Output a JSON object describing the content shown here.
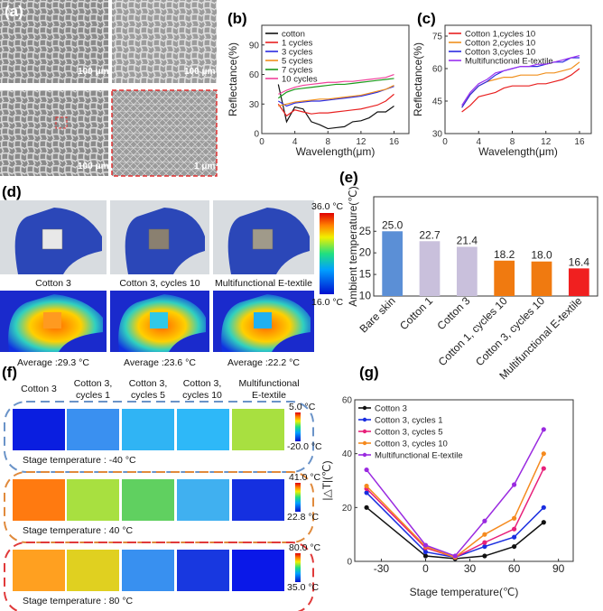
{
  "panels": {
    "a": {
      "label": "(a)",
      "scale_bars": [
        "100 μm",
        "100 μm",
        "100 μm",
        "1 μm"
      ]
    },
    "b": {
      "label": "(b)"
    },
    "c": {
      "label": "(c)"
    },
    "d": {
      "label": "(d)",
      "samples": [
        "Cotton 3",
        "Cotton 3, cycles 10",
        "Multifunctional E-textile"
      ],
      "averages": [
        "Average :29.3 °C",
        "Average :23.6 °C",
        "Average :22.2 °C"
      ],
      "colorbar": {
        "max": "36.0 °C",
        "min": "16.0 °C"
      }
    },
    "e": {
      "label": "(e)"
    },
    "f": {
      "label": "(f)",
      "columns": [
        [
          "Cotton 3",
          ""
        ],
        [
          "Cotton 3,",
          "cycles 1"
        ],
        [
          "Cotton 3,",
          "cycles 5"
        ],
        [
          "Cotton 3,",
          "cycles 10"
        ],
        [
          "Multifunctional",
          "E-textile"
        ]
      ],
      "rows": [
        {
          "stage": "Stage temperature : -40 °C",
          "max": "5.0 °C",
          "min": "-20.0 °C",
          "border": "#6a93c8"
        },
        {
          "stage": "Stage temperature : 40 °C",
          "max": "41.0 °C",
          "min": "22.8 °C",
          "border": "#e08a3c"
        },
        {
          "stage": "Stage temperature : 80 °C",
          "max": "80.0 °C",
          "min": "35.0 °C",
          "border": "#e03a3a"
        }
      ]
    },
    "g": {
      "label": "(g)"
    }
  },
  "chart_data": [
    {
      "id": "b",
      "type": "line",
      "xlabel": "Wavelength(μm)",
      "ylabel": "Reflectance(%)",
      "xlim": [
        0,
        17.8
      ],
      "ylim": [
        0,
        110
      ],
      "xticks": [
        0,
        4,
        8,
        12,
        16
      ],
      "yticks": [
        0,
        30,
        60,
        90
      ],
      "x": [
        2,
        3,
        4,
        5,
        6,
        7,
        8,
        9,
        10,
        11,
        12,
        13,
        14,
        15,
        16
      ],
      "legend": "top-left",
      "series": [
        {
          "name": "cotton",
          "color": "#111111",
          "values": [
            50,
            12,
            27,
            25,
            12,
            9,
            5,
            6,
            7,
            12,
            13,
            16,
            22,
            22,
            28
          ]
        },
        {
          "name": "1 cycles",
          "color": "#e82020",
          "values": [
            30,
            18,
            24,
            22,
            20,
            21,
            21,
            22,
            23,
            24,
            25,
            27,
            29,
            33,
            40
          ]
        },
        {
          "name": "3 cycles",
          "color": "#2a2ae0",
          "values": [
            33,
            28,
            31,
            32,
            33,
            33,
            34,
            35,
            36,
            37,
            38,
            40,
            42,
            45,
            48
          ]
        },
        {
          "name": "5 cycles",
          "color": "#f0901e",
          "values": [
            28,
            30,
            32,
            33,
            34,
            35,
            35,
            36,
            37,
            38,
            39,
            41,
            43,
            45,
            49
          ]
        },
        {
          "name": "7 cycles",
          "color": "#1a9a1a",
          "values": [
            36,
            42,
            45,
            46,
            47,
            48,
            49,
            50,
            50,
            51,
            52,
            53,
            54,
            55,
            56
          ]
        },
        {
          "name": "10 cycles",
          "color": "#f0409a",
          "values": [
            40,
            44,
            47,
            49,
            50,
            51,
            52,
            52,
            53,
            53,
            54,
            55,
            56,
            57,
            60
          ]
        }
      ]
    },
    {
      "id": "c",
      "type": "line",
      "xlabel": "Wavelength(μm)",
      "ylabel": "Reflectance(%)",
      "xlim": [
        0,
        17.4
      ],
      "ylim": [
        30,
        80
      ],
      "xticks": [
        0,
        4,
        8,
        12,
        16
      ],
      "yticks": [
        30,
        45,
        60,
        75
      ],
      "x": [
        2,
        3,
        4,
        5,
        6,
        7,
        8,
        9,
        10,
        11,
        12,
        13,
        14,
        15,
        16
      ],
      "legend": "top-left",
      "series": [
        {
          "name": "Cotton 1,cycles 10",
          "color": "#e82020",
          "values": [
            40,
            43,
            47,
            48,
            49,
            51,
            52,
            52,
            52,
            53,
            53,
            54,
            55,
            57,
            60
          ]
        },
        {
          "name": "Cotton 2,cycles 10",
          "color": "#f0901e",
          "values": [
            42,
            48,
            52,
            54,
            55,
            56,
            56,
            57,
            57,
            57,
            58,
            58,
            59,
            60,
            63
          ]
        },
        {
          "name": "Cotton 3,cycles 10",
          "color": "#2a2ae0",
          "values": [
            42,
            48,
            52,
            54,
            57,
            59,
            60,
            61,
            61,
            61,
            62,
            63,
            63,
            65,
            65
          ]
        },
        {
          "name": "Multifunctional E-textile",
          "color": "#9a30f0",
          "values": [
            43,
            49,
            53,
            55,
            58,
            59,
            60,
            61,
            61,
            62,
            62,
            63,
            64,
            65,
            66
          ]
        }
      ]
    },
    {
      "id": "e",
      "type": "bar",
      "ylabel": "Ambient temperature(℃)",
      "ylim": [
        10,
        33
      ],
      "yticks": [
        10,
        15,
        20,
        25
      ],
      "categories": [
        "Bare skin",
        "Cotton 1",
        "Cotton 3",
        "Cotton 1, cycles 10",
        "Cotton 3, cycles 10",
        "Multifunctional E-textile"
      ],
      "values": [
        25.0,
        22.7,
        21.4,
        18.2,
        18.0,
        16.4
      ],
      "labels": [
        "25.0",
        "22.7",
        "21.4",
        "18.2",
        "18.0",
        "16.4"
      ],
      "colors": [
        "#5b8fd6",
        "#c9c0dc",
        "#c9c0dc",
        "#f07a10",
        "#f07a10",
        "#f02020"
      ]
    },
    {
      "id": "g",
      "type": "line",
      "xlabel": "Stage temperature(℃)",
      "ylabel": "|△T|(℃)",
      "xlim": [
        -48,
        100
      ],
      "ylim": [
        0,
        60
      ],
      "xticks": [
        -30,
        0,
        30,
        60,
        90
      ],
      "yticks": [
        0,
        20,
        40,
        60
      ],
      "x": [
        -40,
        0,
        20,
        40,
        60,
        80
      ],
      "legend": "top-left",
      "series": [
        {
          "name": "Cotton 3",
          "color": "#111111",
          "values": [
            20,
            2,
            1,
            2,
            5.5,
            14.5
          ]
        },
        {
          "name": "Cotton 3, cycles 1",
          "color": "#1a2ee0",
          "values": [
            25.5,
            3.5,
            1.5,
            5.5,
            9,
            20
          ]
        },
        {
          "name": "Cotton 3, cycles 5",
          "color": "#e8207a",
          "values": [
            27,
            5,
            1.5,
            7,
            12,
            34.5
          ]
        },
        {
          "name": "Cotton 3, cycles 10",
          "color": "#f58a1e",
          "values": [
            28,
            5.5,
            1.5,
            10,
            16,
            40
          ]
        },
        {
          "name": "Multifunctional E-textile",
          "color": "#9a2ae0",
          "values": [
            34,
            6,
            2,
            15,
            28.5,
            49
          ]
        }
      ]
    }
  ]
}
